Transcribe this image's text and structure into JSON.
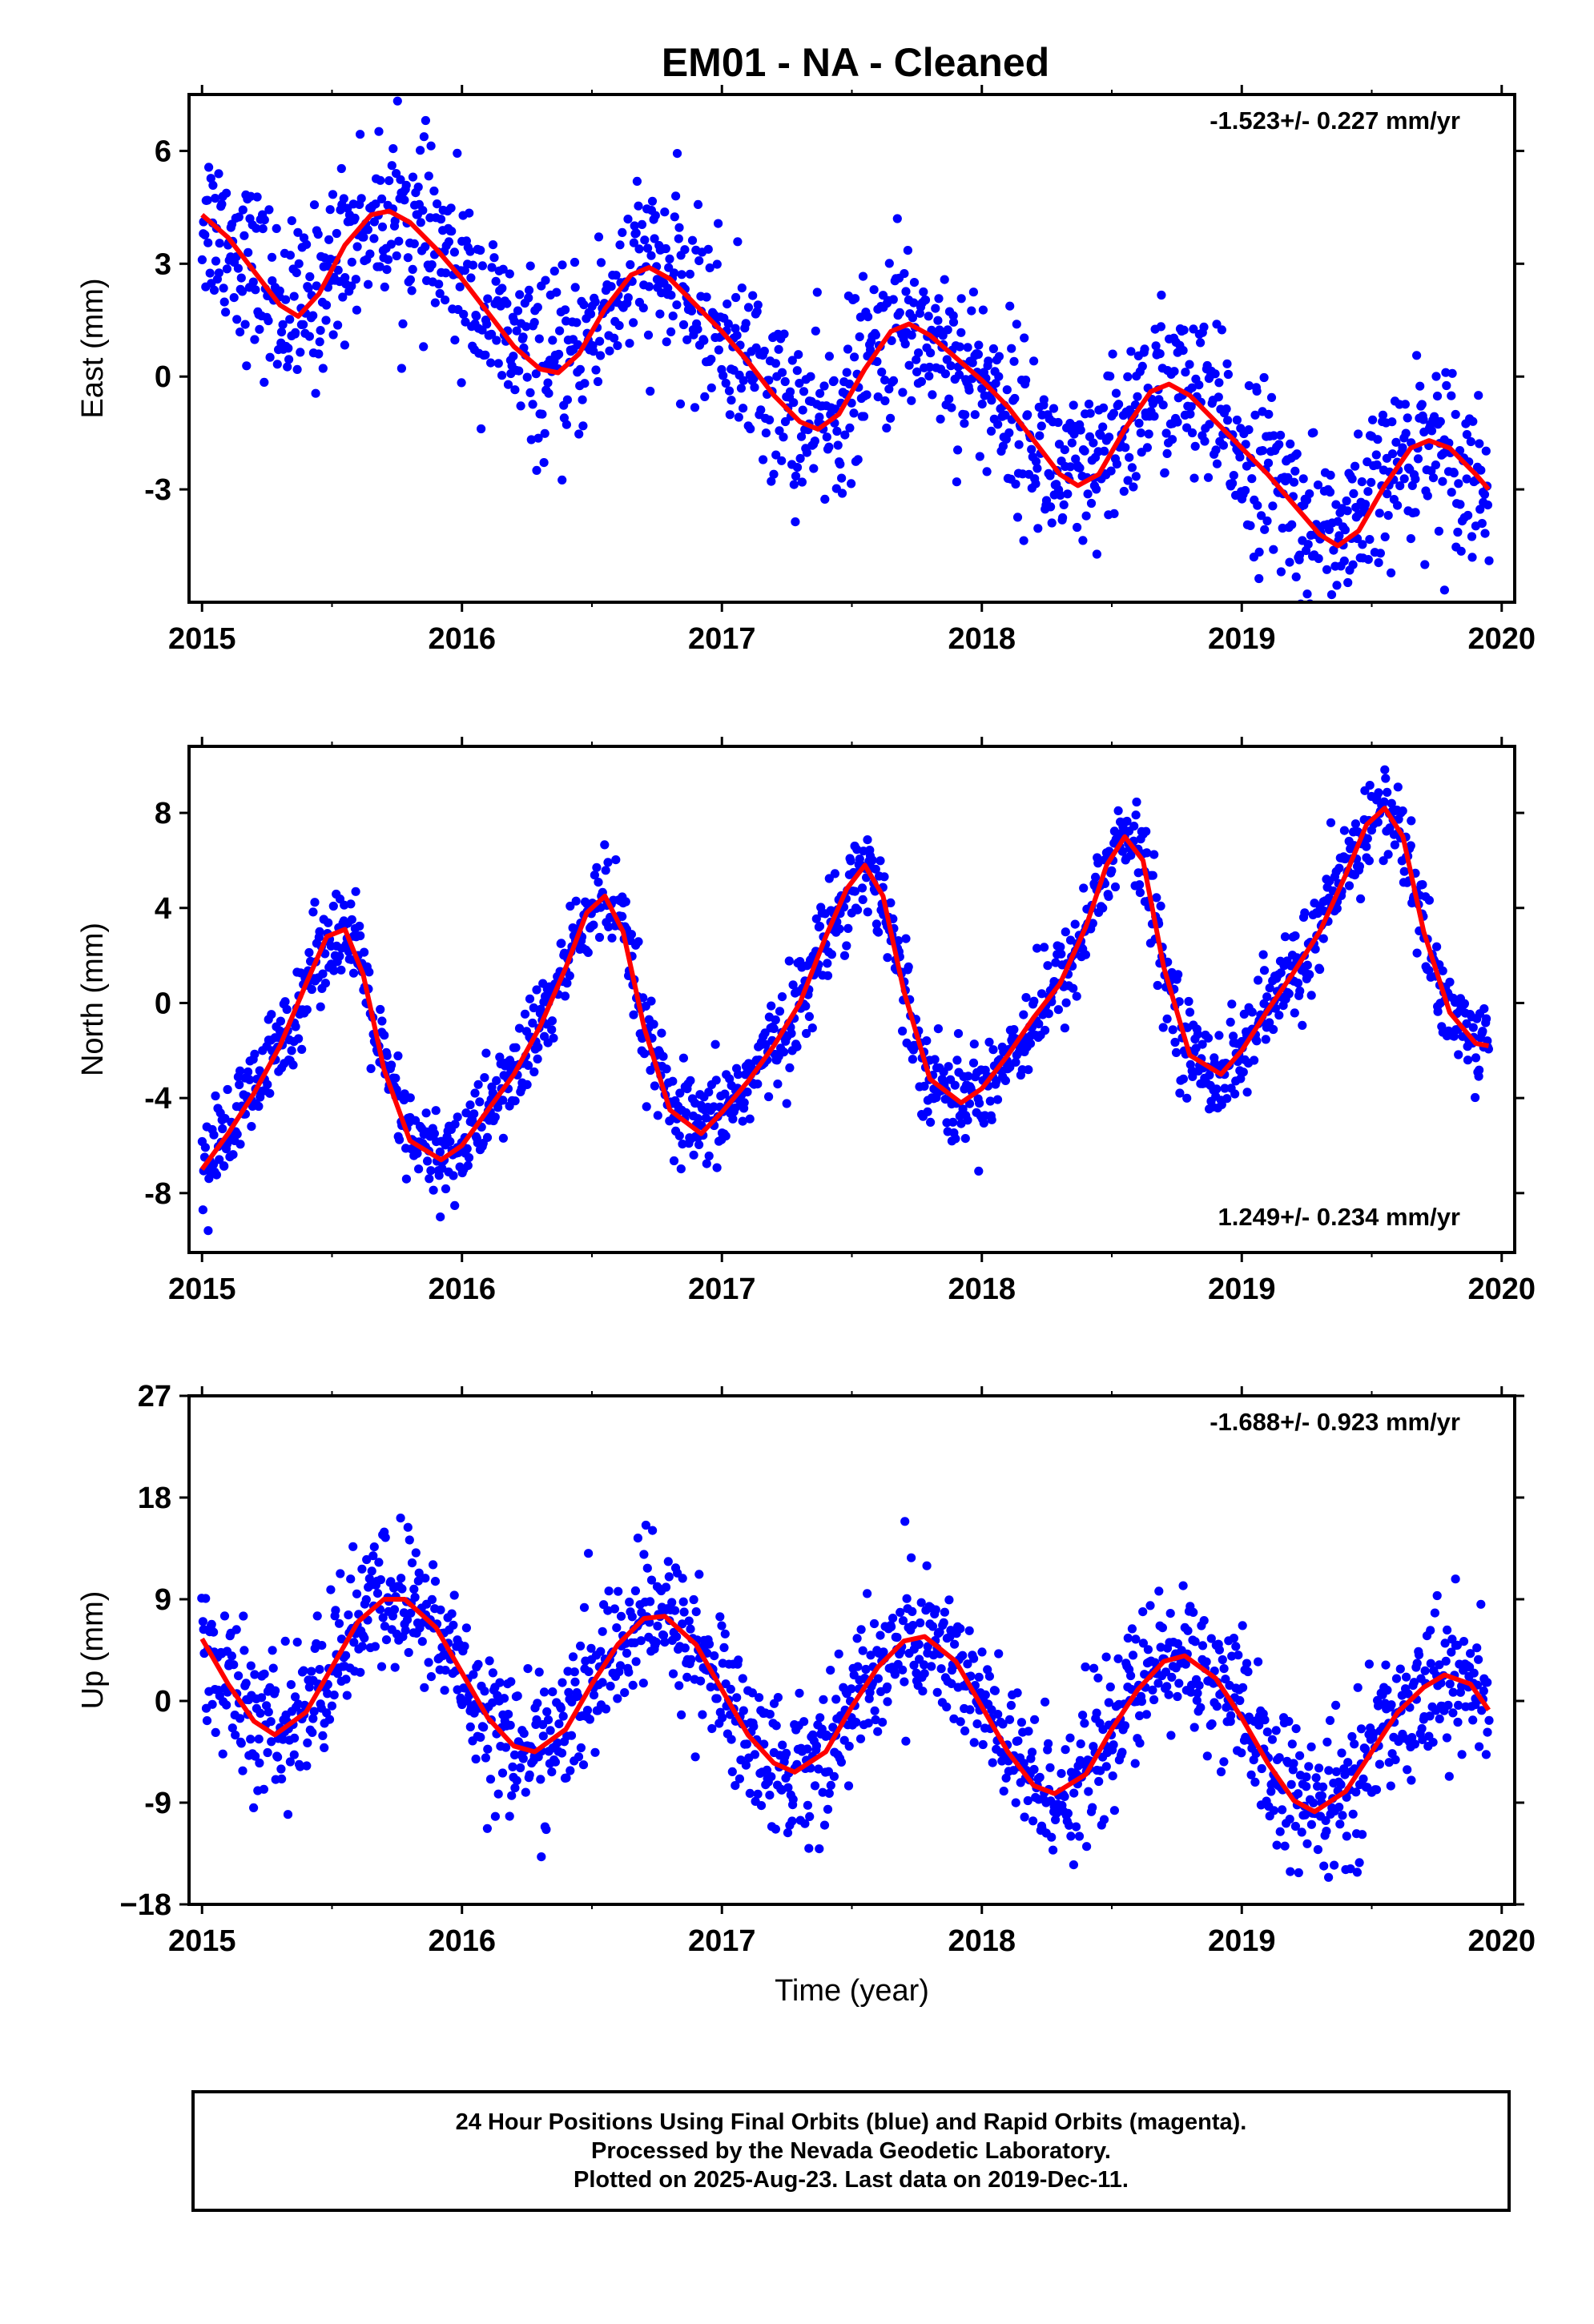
{
  "title": "EM01  - NA - Cleaned",
  "colors": {
    "points": "#0000ff",
    "fit": "#ff0000",
    "axes": "#000000"
  },
  "footer": {
    "line1": "24 Hour Positions Using Final Orbits (blue) and Rapid Orbits (magenta).",
    "line2": "Processed by the Nevada Geodetic Laboratory.",
    "line3": "Plotted on 2025-Aug-23. Last data on 2019-Dec-11."
  },
  "chart_data": [
    {
      "type": "scatter",
      "ylabel": "East (mm)",
      "xlabel": "",
      "xlim": [
        2014.95,
        2020.05
      ],
      "ylim": [
        -6.0,
        7.5
      ],
      "xticks": [
        2015,
        2016,
        2017,
        2018,
        2019,
        2020
      ],
      "yticks": [
        -3,
        0,
        3,
        6
      ],
      "yticklabels": [
        "-3",
        "0",
        "3",
        "6"
      ],
      "rate_label": "-1.523+/- 0.227 mm/yr",
      "rate_position": "top-right",
      "series": [
        {
          "role": "fit",
          "x": [
            2015.0,
            2015.1,
            2015.2,
            2015.3,
            2015.37,
            2015.45,
            2015.55,
            2015.65,
            2015.72,
            2015.8,
            2015.9,
            2016.0,
            2016.1,
            2016.2,
            2016.3,
            2016.37,
            2016.45,
            2016.55,
            2016.65,
            2016.72,
            2016.8,
            2016.9,
            2017.0,
            2017.1,
            2017.2,
            2017.3,
            2017.37,
            2017.45,
            2017.55,
            2017.65,
            2017.72,
            2017.8,
            2017.9,
            2018.0,
            2018.1,
            2018.2,
            2018.3,
            2018.37,
            2018.45,
            2018.55,
            2018.65,
            2018.72,
            2018.8,
            2018.9,
            2019.0,
            2019.1,
            2019.2,
            2019.3,
            2019.37,
            2019.45,
            2019.55,
            2019.65,
            2019.72,
            2019.8,
            2019.9,
            2019.95
          ],
          "y": [
            4.3,
            3.7,
            2.8,
            1.9,
            1.6,
            2.2,
            3.5,
            4.3,
            4.4,
            4.1,
            3.4,
            2.6,
            1.7,
            0.8,
            0.2,
            0.1,
            0.6,
            1.8,
            2.7,
            2.9,
            2.6,
            1.9,
            1.2,
            0.4,
            -0.5,
            -1.2,
            -1.4,
            -1.0,
            0.2,
            1.2,
            1.4,
            1.1,
            0.5,
            -0.1,
            -0.8,
            -1.7,
            -2.6,
            -2.9,
            -2.6,
            -1.4,
            -0.4,
            -0.2,
            -0.5,
            -1.2,
            -1.9,
            -2.6,
            -3.4,
            -4.2,
            -4.5,
            -4.1,
            -2.9,
            -1.9,
            -1.7,
            -1.9,
            -2.6,
            -3.0
          ]
        }
      ]
    },
    {
      "type": "scatter",
      "ylabel": "North (mm)",
      "xlabel": "",
      "xlim": [
        2014.95,
        2020.05
      ],
      "ylim": [
        -10.5,
        10.8
      ],
      "xticks": [
        2015,
        2016,
        2017,
        2018,
        2019,
        2020
      ],
      "yticks": [
        -8,
        -4,
        0,
        4,
        8
      ],
      "yticklabels": [
        "-8",
        "-4",
        "0",
        "4",
        "8"
      ],
      "rate_label": "1.249+/- 0.234 mm/yr",
      "rate_position": "bottom-right",
      "series": [
        {
          "role": "fit",
          "x": [
            2015.0,
            2015.1,
            2015.2,
            2015.3,
            2015.4,
            2015.48,
            2015.55,
            2015.62,
            2015.7,
            2015.8,
            2015.92,
            2016.0,
            2016.1,
            2016.2,
            2016.3,
            2016.4,
            2016.48,
            2016.55,
            2016.62,
            2016.7,
            2016.8,
            2016.92,
            2017.0,
            2017.1,
            2017.2,
            2017.3,
            2017.4,
            2017.48,
            2017.55,
            2017.62,
            2017.7,
            2017.8,
            2017.92,
            2018.0,
            2018.1,
            2018.2,
            2018.3,
            2018.4,
            2018.48,
            2018.55,
            2018.62,
            2018.7,
            2018.8,
            2018.92,
            2019.0,
            2019.1,
            2019.2,
            2019.3,
            2019.4,
            2019.48,
            2019.55,
            2019.62,
            2019.7,
            2019.8,
            2019.9,
            2019.95
          ],
          "y": [
            -7.0,
            -5.5,
            -3.8,
            -1.8,
            0.8,
            2.8,
            3.1,
            1.2,
            -2.8,
            -5.8,
            -6.6,
            -6.0,
            -4.5,
            -3.0,
            -1.0,
            1.5,
            3.8,
            4.5,
            3.0,
            -1.0,
            -4.5,
            -5.5,
            -4.6,
            -3.3,
            -1.8,
            0.0,
            2.8,
            4.8,
            5.8,
            4.5,
            0.5,
            -3.2,
            -4.2,
            -3.6,
            -2.2,
            -0.6,
            0.8,
            3.2,
            5.8,
            7.0,
            6.0,
            1.5,
            -2.2,
            -3.0,
            -2.0,
            -0.3,
            1.3,
            3.0,
            5.4,
            7.5,
            8.2,
            7.0,
            3.0,
            -0.4,
            -1.7,
            -1.8
          ]
        }
      ]
    },
    {
      "type": "scatter",
      "ylabel": "Up (mm)",
      "xlabel": "Time (year)",
      "xlim": [
        2014.95,
        2020.05
      ],
      "ylim": [
        -18,
        27
      ],
      "xticks": [
        2015,
        2016,
        2017,
        2018,
        2019,
        2020
      ],
      "yticks": [
        -18,
        -9,
        0,
        9,
        18,
        27
      ],
      "yticklabels": [
        "−18",
        "-9",
        "0",
        "9",
        "18",
        "27"
      ],
      "rate_label": "-1.688+/- 0.923 mm/yr",
      "rate_position": "top-right",
      "series": [
        {
          "role": "fit",
          "x": [
            2015.0,
            2015.1,
            2015.2,
            2015.28,
            2015.4,
            2015.5,
            2015.6,
            2015.7,
            2015.78,
            2015.9,
            2016.0,
            2016.1,
            2016.2,
            2016.28,
            2016.4,
            2016.5,
            2016.6,
            2016.7,
            2016.78,
            2016.9,
            2017.0,
            2017.1,
            2017.2,
            2017.28,
            2017.4,
            2017.5,
            2017.6,
            2017.7,
            2017.78,
            2017.9,
            2018.0,
            2018.1,
            2018.2,
            2018.28,
            2018.4,
            2018.5,
            2018.6,
            2018.7,
            2018.78,
            2018.9,
            2019.0,
            2019.1,
            2019.2,
            2019.28,
            2019.4,
            2019.5,
            2019.6,
            2019.7,
            2019.78,
            2019.88,
            2019.95
          ],
          "y": [
            5.5,
            1.5,
            -1.8,
            -3.0,
            -1.0,
            3.0,
            7.0,
            9.0,
            9.0,
            6.5,
            2.5,
            -1.5,
            -4.0,
            -4.5,
            -2.5,
            1.5,
            5.0,
            7.3,
            7.5,
            5.0,
            1.0,
            -3.0,
            -5.5,
            -6.3,
            -4.5,
            -0.5,
            3.0,
            5.3,
            5.7,
            3.5,
            -0.5,
            -4.5,
            -7.5,
            -8.2,
            -6.5,
            -2.5,
            1.0,
            3.5,
            4.0,
            2.0,
            -1.5,
            -5.5,
            -8.8,
            -9.8,
            -8.0,
            -4.5,
            -1.0,
            1.2,
            2.3,
            1.5,
            -0.8
          ]
        }
      ]
    }
  ]
}
